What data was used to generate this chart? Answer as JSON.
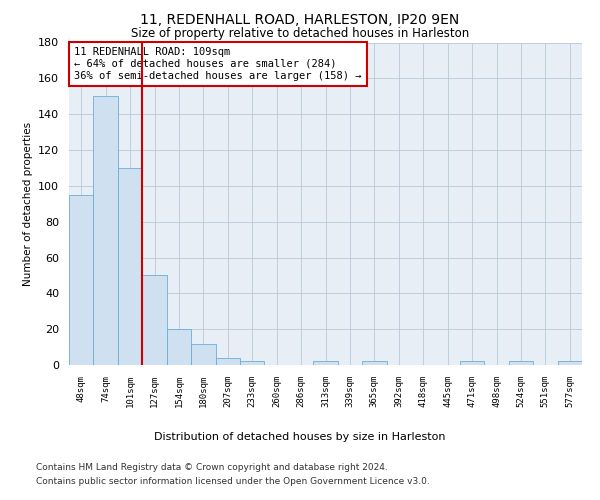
{
  "title": "11, REDENHALL ROAD, HARLESTON, IP20 9EN",
  "subtitle": "Size of property relative to detached houses in Harleston",
  "xlabel": "Distribution of detached houses by size in Harleston",
  "ylabel": "Number of detached properties",
  "bar_labels": [
    "48sqm",
    "74sqm",
    "101sqm",
    "127sqm",
    "154sqm",
    "180sqm",
    "207sqm",
    "233sqm",
    "260sqm",
    "286sqm",
    "313sqm",
    "339sqm",
    "365sqm",
    "392sqm",
    "418sqm",
    "445sqm",
    "471sqm",
    "498sqm",
    "524sqm",
    "551sqm",
    "577sqm"
  ],
  "bar_values": [
    95,
    150,
    110,
    50,
    20,
    12,
    4,
    2,
    0,
    0,
    2,
    0,
    2,
    0,
    0,
    0,
    2,
    0,
    2,
    0,
    2
  ],
  "bar_color": "#cfe0f0",
  "bar_edge_color": "#6aaed6",
  "vline_x": 2.5,
  "vline_color": "#cc0000",
  "annotation_text": "11 REDENHALL ROAD: 109sqm\n← 64% of detached houses are smaller (284)\n36% of semi-detached houses are larger (158) →",
  "annotation_box_color": "#ffffff",
  "annotation_box_edge": "#cc0000",
  "ylim": [
    0,
    180
  ],
  "yticks": [
    0,
    20,
    40,
    60,
    80,
    100,
    120,
    140,
    160,
    180
  ],
  "background_color": "#ffffff",
  "axes_bg_color": "#e8eef5",
  "grid_color": "#b8c8d8",
  "footer_line1": "Contains HM Land Registry data © Crown copyright and database right 2024.",
  "footer_line2": "Contains public sector information licensed under the Open Government Licence v3.0."
}
